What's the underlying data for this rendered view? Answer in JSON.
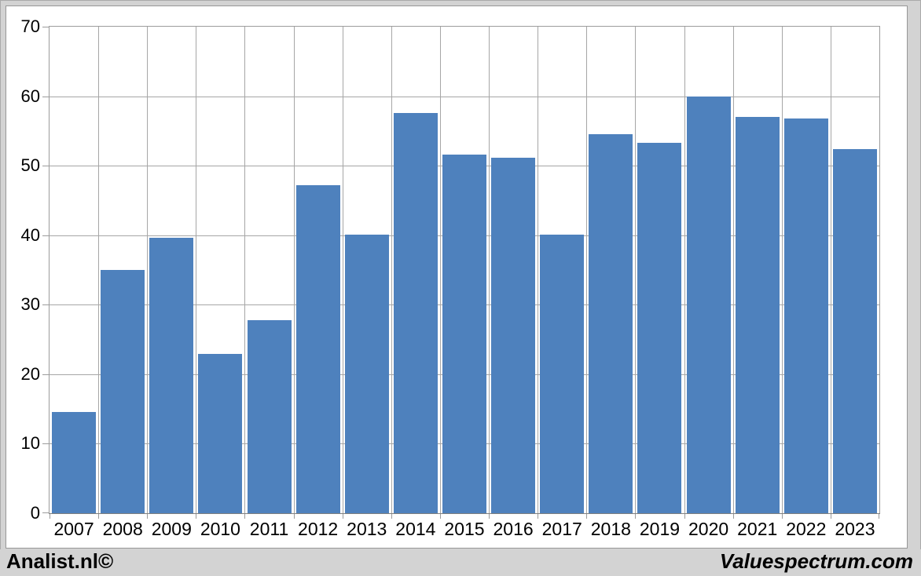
{
  "chart_data": {
    "type": "bar",
    "title": "",
    "xlabel": "",
    "ylabel": "",
    "categories": [
      "2007",
      "2008",
      "2009",
      "2010",
      "2011",
      "2012",
      "2013",
      "2014",
      "2015",
      "2016",
      "2017",
      "2018",
      "2019",
      "2020",
      "2021",
      "2022",
      "2023"
    ],
    "values": [
      14.6,
      35.0,
      39.6,
      22.9,
      27.8,
      47.2,
      40.1,
      57.6,
      51.6,
      51.2,
      40.1,
      54.5,
      53.3,
      60.0,
      57.0,
      56.8,
      52.4
    ],
    "ylim": [
      0,
      70
    ],
    "ytick_labels": [
      "0",
      "10",
      "20",
      "30",
      "40",
      "50",
      "60",
      "70"
    ],
    "ytick_values": [
      0,
      10,
      20,
      30,
      40,
      50,
      60,
      70
    ],
    "grid": "horizontal and vertical category boundaries",
    "legend": "none",
    "bar_color": "#4e81bd"
  },
  "colors": {
    "bar": "#4e81bd",
    "gridline": "#a6a6a6",
    "plot_border": "#9c9c9c",
    "axis": "#808080",
    "plot_bg": "#ffffff",
    "window_bg": "#d3d3d3",
    "text": "#000000"
  },
  "footer": {
    "left_text": "Analist.nl©",
    "right_text": "Valuespectrum.com"
  }
}
